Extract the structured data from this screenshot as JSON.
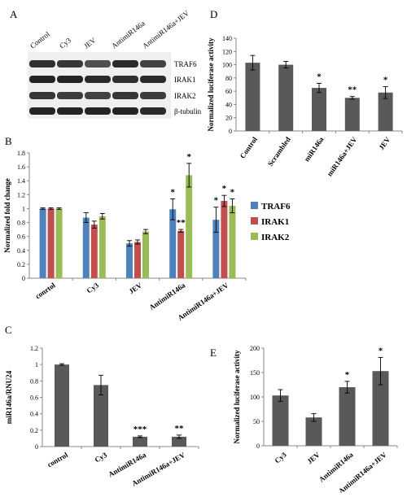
{
  "blot": {
    "panel_label": "A",
    "columns": [
      "Control",
      "Cy3",
      "JEV",
      "AntimiR146a",
      "AntimiR146a+JEV"
    ],
    "bands": [
      "TRAF6",
      "IRAK1",
      "IRAK2",
      "β-tubulin"
    ]
  },
  "chart_data": [
    {
      "panel": "B",
      "type": "bar",
      "categories": [
        "conrtol",
        "Cy3",
        "JEV",
        "AntimiR146a",
        "AntimiR146a+JEV"
      ],
      "ylabel": "Normalized fold change",
      "ylim": [
        0,
        1.8
      ],
      "yticks": [
        "0",
        "0.2",
        "0.4",
        "0.6",
        "0.8",
        "1",
        "1.2",
        "1.4",
        "1.6",
        "1.8"
      ],
      "legend_position": "right",
      "series": [
        {
          "name": "TRAF6",
          "color": "#4f81bd",
          "values": [
            1.0,
            0.87,
            0.5,
            0.99,
            0.84
          ],
          "errors": [
            0.01,
            0.07,
            0.04,
            0.15,
            0.18
          ],
          "marks": [
            "",
            "",
            "",
            "*",
            "*"
          ]
        },
        {
          "name": "IRAK1",
          "color": "#c0504d",
          "values": [
            1.0,
            0.77,
            0.52,
            0.68,
            1.11
          ],
          "errors": [
            0.01,
            0.05,
            0.03,
            0.02,
            0.08
          ],
          "marks": [
            "",
            "",
            "",
            "**",
            "*"
          ]
        },
        {
          "name": "IRAK2",
          "color": "#9bbb59",
          "values": [
            1.0,
            0.89,
            0.67,
            1.48,
            1.04
          ],
          "errors": [
            0.01,
            0.04,
            0.03,
            0.17,
            0.1
          ],
          "marks": [
            "",
            "",
            "",
            "*",
            "*"
          ]
        }
      ]
    },
    {
      "panel": "C",
      "type": "bar",
      "categories": [
        "control",
        "Cy3",
        "AntimiR146a",
        "AntimiR146a+JEV"
      ],
      "ylabel": "miR146a/RNU24",
      "ylim": [
        0,
        1.2
      ],
      "yticks": [
        "0",
        "0.2",
        "0.4",
        "0.6",
        "0.8",
        "1",
        "1.2"
      ],
      "series": [
        {
          "color": "#595959",
          "values": [
            1.0,
            0.75,
            0.12,
            0.12
          ],
          "errors": [
            0.01,
            0.12,
            0.01,
            0.02
          ],
          "marks": [
            "",
            "",
            "***",
            "**"
          ]
        }
      ]
    },
    {
      "panel": "D",
      "type": "bar",
      "categories": [
        "Control",
        "Scrambled",
        "miR146a",
        "miR146a+JEV",
        "JEV"
      ],
      "ylabel": "Normalized luciferase activity",
      "ylim": [
        0,
        140
      ],
      "yticks": [
        "0",
        "20",
        "40",
        "60",
        "80",
        "100",
        "120",
        "140"
      ],
      "series": [
        {
          "color": "#595959",
          "values": [
            103,
            100,
            65,
            50,
            58
          ],
          "errors": [
            11,
            5,
            7,
            2,
            9
          ],
          "marks": [
            "",
            "",
            "*",
            "**",
            "*"
          ]
        }
      ]
    },
    {
      "panel": "E",
      "type": "bar",
      "categories": [
        "Cy3",
        "JEV",
        "AntimiR146a",
        "AntimiR146a+JEV"
      ],
      "ylabel": "Normalized luciferase activity",
      "ylim": [
        0,
        200
      ],
      "yticks": [
        "0",
        "50",
        "100",
        "150",
        "200"
      ],
      "series": [
        {
          "color": "#595959",
          "values": [
            103,
            58,
            120,
            153
          ],
          "errors": [
            12,
            8,
            12,
            28
          ],
          "marks": [
            "",
            "",
            "*",
            "*"
          ]
        }
      ]
    }
  ]
}
